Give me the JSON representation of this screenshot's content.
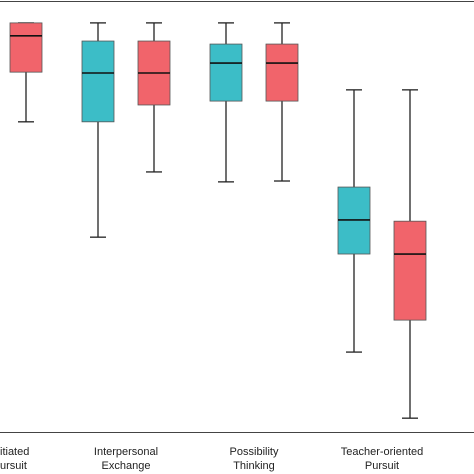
{
  "chart_data": {
    "type": "box",
    "categories": [
      [
        "itiated",
        "ursuit"
      ],
      [
        "Interpersonal",
        "Exchange"
      ],
      [
        "Possibility",
        "Thinking"
      ],
      [
        "Teacher-oriented",
        "Pursuit"
      ]
    ],
    "ylim": [
      0,
      100
    ],
    "series": [
      {
        "color": "#3cbdc7",
        "max": [
          null,
          94.7,
          94.7,
          79.2
        ],
        "q3": [
          null,
          90.5,
          89.8,
          56.7
        ],
        "median": [
          null,
          83.1,
          85.4,
          49.1
        ],
        "q1": [
          null,
          71.8,
          76.6,
          41.2
        ],
        "min": [
          null,
          45.1,
          57.9,
          18.5
        ]
      },
      {
        "color": "#f1646b",
        "max": [
          94.7,
          94.7,
          94.7,
          79.2
        ],
        "q3": [
          94.7,
          90.5,
          89.8,
          48.8
        ],
        "median": [
          91.7,
          83.1,
          85.4,
          41.2
        ],
        "q1": [
          83.3,
          75.7,
          76.6,
          25.9
        ],
        "min": [
          71.8,
          60.2,
          58.1,
          3.2
        ]
      }
    ]
  }
}
